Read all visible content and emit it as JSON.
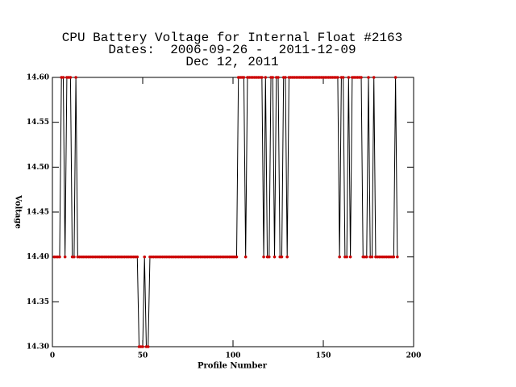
{
  "chart_data": {
    "type": "line",
    "title": "CPU Battery Voltage for Internal Float #2163",
    "subtitle": "Dates:  2006-09-26 -  2011-12-09",
    "date_line": "Dec 12, 2011",
    "x_label": "Profile Number",
    "y_label": "Voltage",
    "xlim": [
      0,
      200
    ],
    "xticks": [
      0,
      50,
      100,
      150,
      200
    ],
    "ylim": [
      14.3,
      14.6
    ],
    "yticks": [
      {
        "value": 14.3,
        "label": "14.30"
      },
      {
        "value": 14.35,
        "label": "14.35"
      },
      {
        "value": 14.4,
        "label": "14.40"
      },
      {
        "value": 14.45,
        "label": "14.45"
      },
      {
        "value": 14.5,
        "label": "14.50"
      },
      {
        "value": 14.55,
        "label": "14.55"
      },
      {
        "value": 14.6,
        "label": "14.60"
      }
    ],
    "line_color": "#000000",
    "marker_color": "#cc0000",
    "x": [
      1,
      2,
      3,
      4,
      5,
      6,
      7,
      8,
      9,
      10,
      11,
      12,
      13,
      14,
      15,
      16,
      17,
      18,
      19,
      20,
      21,
      22,
      23,
      24,
      25,
      26,
      27,
      28,
      29,
      30,
      31,
      32,
      33,
      34,
      35,
      36,
      37,
      38,
      39,
      40,
      41,
      42,
      43,
      44,
      45,
      46,
      47,
      48,
      49,
      50,
      51,
      52,
      53,
      54,
      55,
      56,
      57,
      58,
      59,
      60,
      61,
      62,
      63,
      64,
      65,
      66,
      67,
      68,
      69,
      70,
      71,
      72,
      73,
      74,
      75,
      76,
      77,
      78,
      79,
      80,
      81,
      82,
      83,
      84,
      85,
      86,
      87,
      88,
      89,
      90,
      91,
      92,
      93,
      94,
      95,
      96,
      97,
      98,
      99,
      100,
      101,
      102,
      103,
      104,
      105,
      106,
      107,
      108,
      109,
      110,
      111,
      112,
      113,
      114,
      115,
      116,
      117,
      118,
      119,
      120,
      121,
      122,
      123,
      124,
      125,
      126,
      127,
      128,
      129,
      130,
      131,
      132,
      133,
      134,
      135,
      136,
      137,
      138,
      139,
      140,
      141,
      142,
      143,
      144,
      145,
      146,
      147,
      148,
      149,
      150,
      151,
      152,
      153,
      154,
      155,
      156,
      157,
      158,
      159,
      160,
      161,
      162,
      163,
      164,
      165,
      166,
      167,
      168,
      169,
      170,
      171,
      172,
      173,
      174,
      175,
      176,
      177,
      178,
      179,
      180,
      181,
      182,
      183,
      184,
      185,
      186,
      187,
      188,
      189,
      190,
      191
    ],
    "values": [
      14.4,
      14.4,
      14.4,
      14.4,
      14.6,
      14.6,
      14.4,
      14.6,
      14.6,
      14.6,
      14.4,
      14.4,
      14.6,
      14.4,
      14.4,
      14.4,
      14.4,
      14.4,
      14.4,
      14.4,
      14.4,
      14.4,
      14.4,
      14.4,
      14.4,
      14.4,
      14.4,
      14.4,
      14.4,
      14.4,
      14.4,
      14.4,
      14.4,
      14.4,
      14.4,
      14.4,
      14.4,
      14.4,
      14.4,
      14.4,
      14.4,
      14.4,
      14.4,
      14.4,
      14.4,
      14.4,
      14.4,
      14.3,
      14.3,
      14.3,
      14.4,
      14.3,
      14.3,
      14.4,
      14.4,
      14.4,
      14.4,
      14.4,
      14.4,
      14.4,
      14.4,
      14.4,
      14.4,
      14.4,
      14.4,
      14.4,
      14.4,
      14.4,
      14.4,
      14.4,
      14.4,
      14.4,
      14.4,
      14.4,
      14.4,
      14.4,
      14.4,
      14.4,
      14.4,
      14.4,
      14.4,
      14.4,
      14.4,
      14.4,
      14.4,
      14.4,
      14.4,
      14.4,
      14.4,
      14.4,
      14.4,
      14.4,
      14.4,
      14.4,
      14.4,
      14.4,
      14.4,
      14.4,
      14.4,
      14.4,
      14.4,
      14.4,
      14.6,
      14.6,
      14.6,
      14.6,
      14.4,
      14.6,
      14.6,
      14.6,
      14.6,
      14.6,
      14.6,
      14.6,
      14.6,
      14.6,
      14.4,
      14.6,
      14.4,
      14.4,
      14.6,
      14.6,
      14.4,
      14.6,
      14.6,
      14.4,
      14.4,
      14.6,
      14.6,
      14.4,
      14.6,
      14.6,
      14.6,
      14.6,
      14.6,
      14.6,
      14.6,
      14.6,
      14.6,
      14.6,
      14.6,
      14.6,
      14.6,
      14.6,
      14.6,
      14.6,
      14.6,
      14.6,
      14.6,
      14.6,
      14.6,
      14.6,
      14.6,
      14.6,
      14.6,
      14.6,
      14.6,
      14.6,
      14.4,
      14.6,
      14.6,
      14.4,
      14.4,
      14.6,
      14.4,
      14.6,
      14.6,
      14.6,
      14.6,
      14.6,
      14.6,
      14.4,
      14.4,
      14.4,
      14.6,
      14.4,
      14.4,
      14.6,
      14.4,
      14.4,
      14.4,
      14.4,
      14.4,
      14.4,
      14.4,
      14.4,
      14.4,
      14.4,
      14.4,
      14.6,
      14.4
    ]
  }
}
